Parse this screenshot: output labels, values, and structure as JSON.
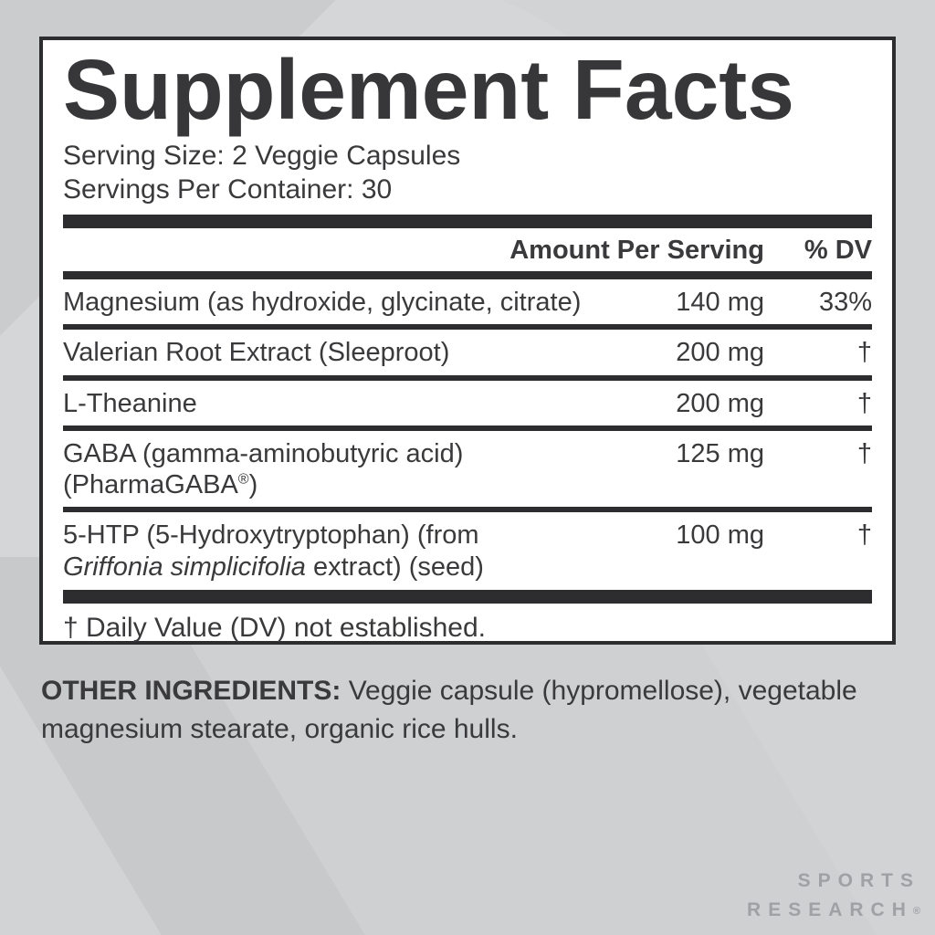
{
  "panel": {
    "title": "Supplement Facts",
    "serving_size": "Serving Size: 2 Veggie Capsules",
    "servings_per_container": "Servings Per Container: 30",
    "header": {
      "amount": "Amount Per Serving",
      "dv": "% DV"
    },
    "rows": [
      {
        "name": "Magnesium (as hydroxide, glycinate, citrate)",
        "amount": "140 mg",
        "dv": "33%"
      },
      {
        "name": "Valerian Root Extract (Sleeproot)",
        "amount": "200 mg",
        "dv": "†"
      },
      {
        "name": "L-Theanine",
        "amount": "200 mg",
        "dv": "†"
      },
      {
        "name_line1": "GABA (gamma-aminobutyric acid)",
        "name_line2": "(PharmaGABA",
        "name_line2_reg": "®",
        "name_line2_close": ")",
        "amount": "125 mg",
        "dv": "†"
      },
      {
        "name_line1": "5-HTP (5-Hydroxytryptophan) (from",
        "name_line2_italic": "Griffonia simplicifolia",
        "name_line2_rest": " extract) (seed)",
        "amount": "100 mg",
        "dv": "†"
      }
    ],
    "footnote": "† Daily Value (DV) not established."
  },
  "other_ingredients": {
    "label": "OTHER INGREDIENTS:",
    "text": " Veggie capsule (hypromellose), vegetable magnesium stearate, organic rice hulls."
  },
  "brand": {
    "line1": "SPORTS",
    "line2": "RESEARCH",
    "registered": "®"
  },
  "colors": {
    "page_background": "#d2d3d5",
    "panel_background": "#ffffff",
    "text": "#3a3a3c",
    "rule": "#2d2d2f",
    "brand_text": "#a0a1a4"
  }
}
